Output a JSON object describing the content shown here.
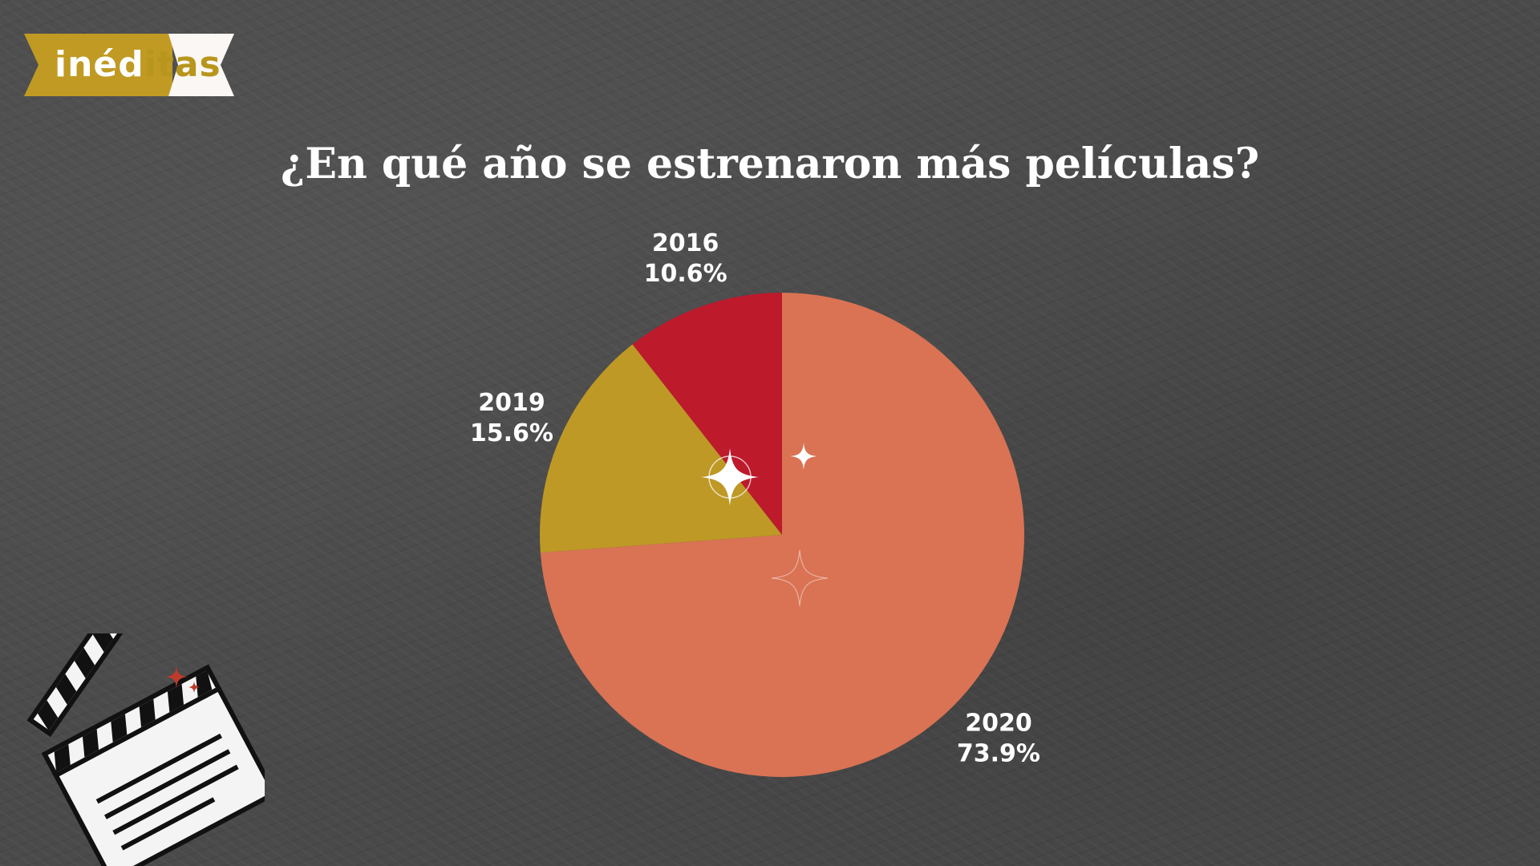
{
  "logo": {
    "text": "inéditas",
    "icon": "ribbon-banner-icon",
    "colors": {
      "gold": "#c09a23",
      "cream": "#fbf7f4"
    }
  },
  "chart_data": {
    "type": "pie",
    "title": "¿En qué año se estrenaron más películas?",
    "start_angle_deg": 0,
    "direction": "clockwise",
    "slices": [
      {
        "label": "2020",
        "value": 73.9,
        "value_label": "73.9%",
        "color": "#d97354"
      },
      {
        "label": "2019",
        "value": 15.6,
        "value_label": "15.6%",
        "color": "#be9925"
      },
      {
        "label": "2016",
        "value": 10.6,
        "value_label": "10.6%",
        "color": "#bd1a2c"
      }
    ]
  },
  "decorations": {
    "sparkle_icon": "four-point-star-icon",
    "clapperboard_icon": "clapperboard-icon",
    "background": "chalkboard-texture"
  },
  "colors": {
    "background": "#4a4a4a",
    "text": "#ffffff"
  }
}
